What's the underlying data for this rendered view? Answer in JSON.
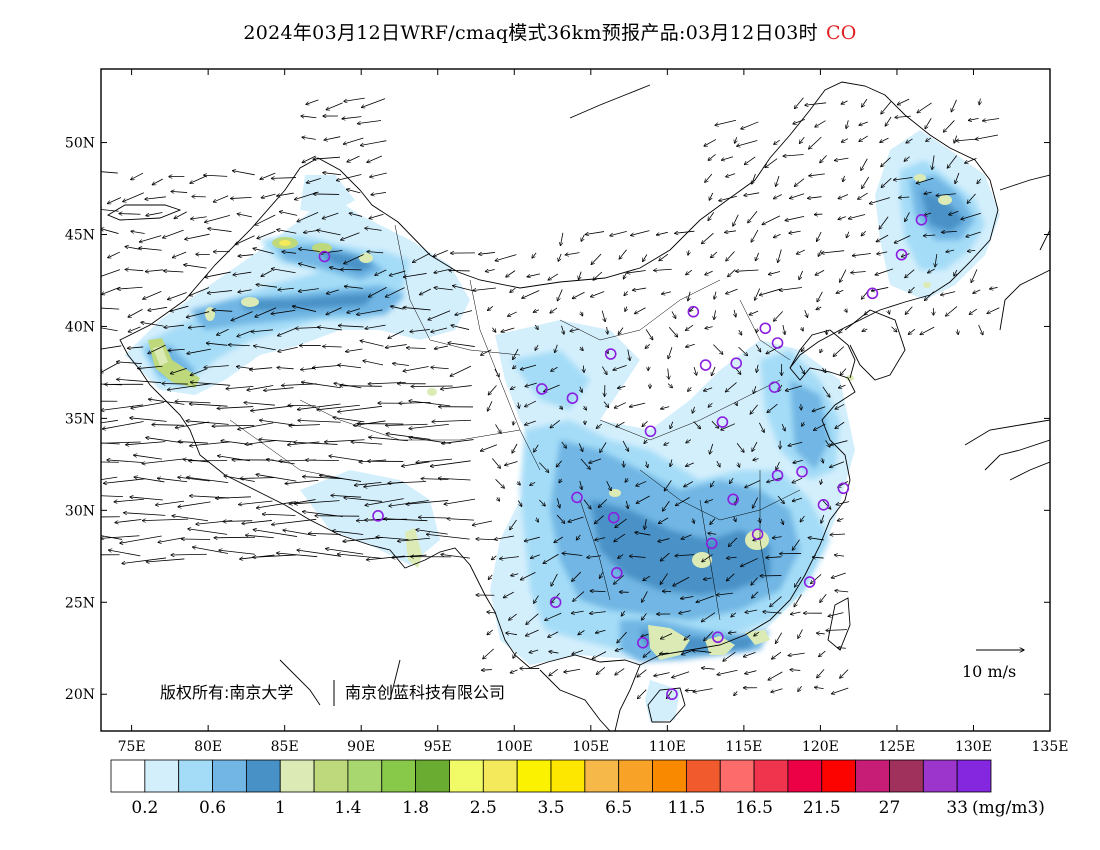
{
  "title": {
    "main": "2024年03月12日WRF/cmaq模式36km预报产品:03月12日03时",
    "species": "CO",
    "species_color": "#e02020"
  },
  "axes": {
    "lon_ticks": [
      "75E",
      "80E",
      "85E",
      "90E",
      "95E",
      "100E",
      "105E",
      "110E",
      "115E",
      "120E",
      "125E",
      "130E",
      "135E"
    ],
    "lon_values": [
      75,
      80,
      85,
      90,
      95,
      100,
      105,
      110,
      115,
      120,
      125,
      130,
      135
    ],
    "lat_ticks": [
      "20N",
      "25N",
      "30N",
      "35N",
      "40N",
      "45N",
      "50N"
    ],
    "lat_values": [
      20,
      25,
      30,
      35,
      40,
      45,
      50
    ],
    "lon_range": [
      73,
      135
    ],
    "lat_range": [
      18,
      54
    ]
  },
  "colorbar": {
    "colors": [
      "#ffffff",
      "#d4effc",
      "#a4dcf7",
      "#71b6e4",
      "#4891c6",
      "#dcebb5",
      "#bdd97c",
      "#a8d66f",
      "#88c94a",
      "#6aac32",
      "#f1fb68",
      "#f4e95a",
      "#fbf200",
      "#fde600",
      "#f7b84a",
      "#f8a328",
      "#f98a00",
      "#f15a2c",
      "#fd6c6b",
      "#f0344e",
      "#ec0046",
      "#fc0300",
      "#c71d76",
      "#a0305c",
      "#9c35cc",
      "#8427df"
    ],
    "labels": [
      "0.2",
      "0.6",
      "1",
      "1.4",
      "1.8",
      "2.5",
      "3.5",
      "6.5",
      "11.5",
      "16.5",
      "21.5",
      "27",
      "33"
    ],
    "unit": "(mg/m3)"
  },
  "wind_legend": {
    "label": "10 m/s"
  },
  "copyright": {
    "text1": "版权所有:南京大学",
    "text2": "南京创蓝科技有限公司"
  },
  "stations": [
    [
      87.6,
      43.8
    ],
    [
      91.1,
      29.7
    ],
    [
      101.8,
      36.6
    ],
    [
      103.8,
      36.1
    ],
    [
      106.3,
      38.5
    ],
    [
      108.9,
      34.3
    ],
    [
      104.1,
      30.7
    ],
    [
      106.5,
      29.6
    ],
    [
      106.7,
      26.6
    ],
    [
      102.7,
      25.0
    ],
    [
      108.4,
      22.8
    ],
    [
      113.3,
      23.1
    ],
    [
      110.3,
      20.0
    ],
    [
      112.9,
      28.2
    ],
    [
      115.9,
      28.7
    ],
    [
      114.3,
      30.6
    ],
    [
      117.2,
      31.9
    ],
    [
      118.8,
      32.1
    ],
    [
      120.2,
      30.3
    ],
    [
      121.5,
      31.2
    ],
    [
      119.3,
      26.1
    ],
    [
      111.7,
      40.8
    ],
    [
      112.5,
      37.9
    ],
    [
      114.5,
      38.0
    ],
    [
      116.4,
      39.9
    ],
    [
      117.2,
      39.1
    ],
    [
      117.0,
      36.7
    ],
    [
      113.6,
      34.8
    ],
    [
      123.4,
      41.8
    ],
    [
      125.3,
      43.9
    ],
    [
      126.6,
      45.8
    ]
  ]
}
